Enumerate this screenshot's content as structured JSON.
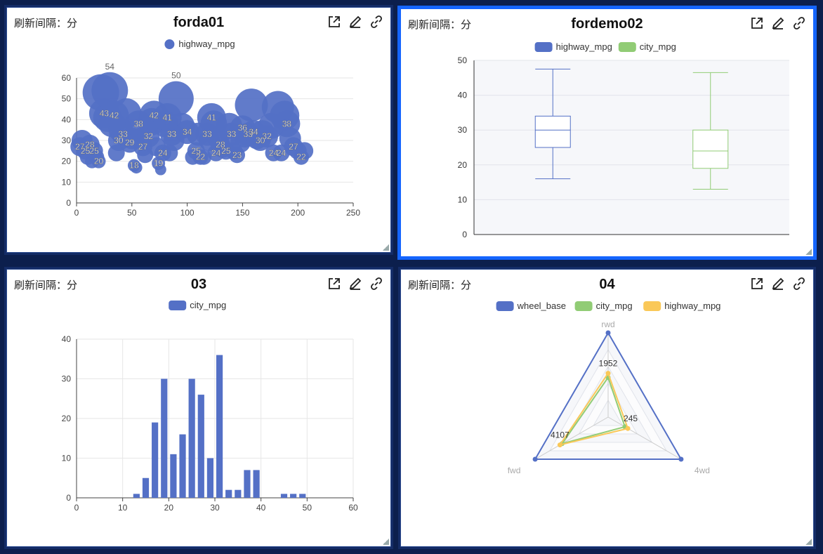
{
  "common": {
    "refresh_label": "刷新间隔：分"
  },
  "colors": {
    "blue": "#5470c6",
    "green": "#91cc75",
    "yellow": "#fac858"
  },
  "icons": [
    "external-link-icon",
    "edit-icon",
    "link-icon"
  ],
  "panels": [
    {
      "title": "forda01",
      "chart_data": {
        "type": "scatter",
        "legend": [
          "highway_mpg"
        ],
        "xlim": [
          0,
          250
        ],
        "xticks": [
          0,
          50,
          100,
          150,
          200,
          250
        ],
        "ylim": [
          0,
          60
        ],
        "yticks": [
          0,
          10,
          20,
          30,
          40,
          50,
          60
        ],
        "points": [
          [
            3,
            27
          ],
          [
            5,
            30
          ],
          [
            8,
            25
          ],
          [
            10,
            22
          ],
          [
            12,
            28
          ],
          [
            14,
            20
          ],
          [
            16,
            25
          ],
          [
            18,
            22
          ],
          [
            20,
            20
          ],
          [
            22,
            53
          ],
          [
            25,
            43
          ],
          [
            28,
            41
          ],
          [
            30,
            54
          ],
          [
            32,
            38
          ],
          [
            34,
            42
          ],
          [
            36,
            24
          ],
          [
            38,
            30
          ],
          [
            40,
            35
          ],
          [
            42,
            33
          ],
          [
            45,
            43
          ],
          [
            48,
            29
          ],
          [
            50,
            31
          ],
          [
            52,
            18
          ],
          [
            54,
            17
          ],
          [
            56,
            38
          ],
          [
            58,
            31
          ],
          [
            60,
            27
          ],
          [
            62,
            23
          ],
          [
            65,
            32
          ],
          [
            68,
            39
          ],
          [
            70,
            42
          ],
          [
            72,
            27
          ],
          [
            74,
            19
          ],
          [
            76,
            16
          ],
          [
            78,
            24
          ],
          [
            80,
            38
          ],
          [
            82,
            41
          ],
          [
            84,
            24
          ],
          [
            86,
            33
          ],
          [
            88,
            30
          ],
          [
            90,
            50
          ],
          [
            95,
            37
          ],
          [
            100,
            34
          ],
          [
            105,
            22
          ],
          [
            108,
            25
          ],
          [
            110,
            33
          ],
          [
            112,
            22
          ],
          [
            115,
            22
          ],
          [
            118,
            33
          ],
          [
            120,
            30
          ],
          [
            122,
            41
          ],
          [
            124,
            38
          ],
          [
            126,
            24
          ],
          [
            128,
            31
          ],
          [
            130,
            28
          ],
          [
            132,
            26
          ],
          [
            135,
            25
          ],
          [
            138,
            37
          ],
          [
            140,
            33
          ],
          [
            142,
            25
          ],
          [
            145,
            23
          ],
          [
            148,
            29
          ],
          [
            150,
            36
          ],
          [
            152,
            32
          ],
          [
            155,
            33
          ],
          [
            158,
            47
          ],
          [
            160,
            34
          ],
          [
            163,
            31
          ],
          [
            166,
            30
          ],
          [
            168,
            34
          ],
          [
            172,
            32
          ],
          [
            176,
            37
          ],
          [
            178,
            24
          ],
          [
            182,
            46
          ],
          [
            185,
            24
          ],
          [
            188,
            42
          ],
          [
            190,
            38
          ],
          [
            193,
            31
          ],
          [
            196,
            27
          ],
          [
            200,
            25
          ],
          [
            203,
            22
          ],
          [
            206,
            25
          ]
        ],
        "labels": [
          "53",
          "54",
          "43",
          "42",
          "41",
          "38",
          "30",
          "28",
          "25",
          "24",
          "22",
          "20",
          "43",
          "42",
          "39",
          "38",
          "41",
          "50",
          "37",
          "34",
          "33",
          "32",
          "30",
          "27",
          "24",
          "23",
          "19",
          "18",
          "17",
          "16",
          "41",
          "38",
          "37",
          "36",
          "33",
          "32",
          "31",
          "29",
          "28",
          "26",
          "25",
          "23",
          "47",
          "46",
          "42",
          "38",
          "34",
          "32",
          "31",
          "30",
          "27",
          "25",
          "24",
          "22"
        ]
      }
    },
    {
      "title": "fordemo02",
      "chart_data": {
        "type": "boxplot",
        "legend": [
          "highway_mpg",
          "city_mpg"
        ],
        "ylim": [
          0,
          50
        ],
        "yticks": [
          0,
          10,
          20,
          30,
          40,
          50
        ],
        "series": [
          {
            "name": "highway_mpg",
            "min": 16,
            "q1": 25,
            "median": 30,
            "q3": 34,
            "max": 47.5
          },
          {
            "name": "city_mpg",
            "min": 13,
            "q1": 19,
            "median": 24,
            "q3": 30,
            "max": 46.5
          }
        ]
      }
    },
    {
      "title": "03",
      "chart_data": {
        "type": "bar",
        "legend": [
          "city_mpg"
        ],
        "xlim": [
          0,
          60
        ],
        "xticks": [
          0,
          10,
          20,
          30,
          40,
          50,
          60
        ],
        "ylim": [
          0,
          40
        ],
        "yticks": [
          0,
          10,
          20,
          30,
          40
        ],
        "x": [
          13,
          15,
          17,
          19,
          21,
          23,
          25,
          27,
          29,
          31,
          33,
          35,
          37,
          39,
          45,
          47,
          49
        ],
        "values": [
          1,
          5,
          19,
          30,
          11,
          16,
          30,
          26,
          10,
          36,
          2,
          2,
          7,
          7,
          1,
          1,
          1
        ]
      }
    },
    {
      "title": "04",
      "chart_data": {
        "type": "radar",
        "legend": [
          "wheel_base",
          "city_mpg",
          "highway_mpg"
        ],
        "indicators": [
          "rwd",
          "4wd",
          "fwd"
        ],
        "annotations": [
          "1952",
          "245",
          "4107"
        ],
        "series": [
          {
            "name": "wheel_base",
            "values": [
              1,
              1,
              1
            ]
          },
          {
            "name": "city_mpg",
            "values": [
              0.47,
              0.23,
              0.63
            ]
          },
          {
            "name": "highway_mpg",
            "values": [
              0.52,
              0.27,
              0.66
            ]
          }
        ]
      }
    }
  ]
}
